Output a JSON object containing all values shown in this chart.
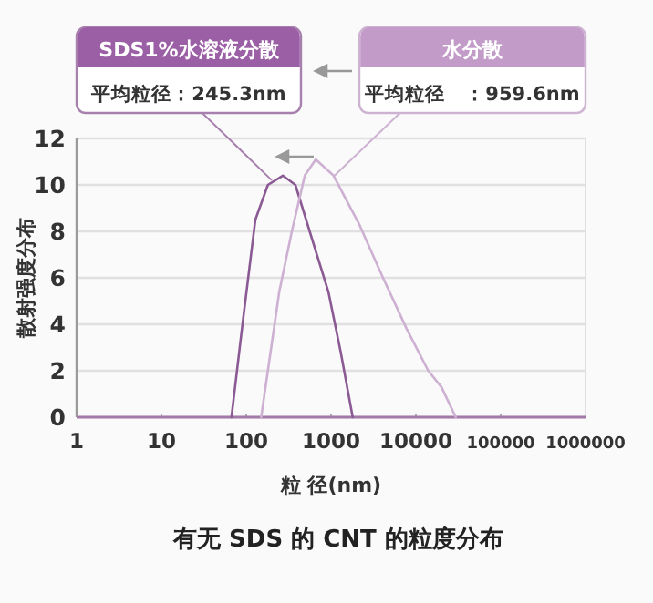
{
  "chart_data": {
    "type": "line",
    "title": "有无 SDS 的 CNT 的粒度分布",
    "xlabel": "粒 径(nm)",
    "ylabel": "散射强度分布",
    "log": "x",
    "xlim": [
      1,
      1000000
    ],
    "xticks": [
      1,
      10,
      100,
      1000,
      10000,
      100000,
      1000000
    ],
    "ylim": [
      0,
      12
    ],
    "yticks": [
      0,
      2,
      4,
      6,
      8,
      10,
      12
    ],
    "grid": "y",
    "marker": "none",
    "line_style": "solid",
    "annotations": [
      "SDS1%水溶液分散",
      {
        "text": "平均粒径：245.3nm",
        "x": 200,
        "y": 10.2
      },
      "水分散",
      {
        "text": "平均粒径　：959.6nm",
        "x": 1100,
        "y": 10.4
      }
    ],
    "series": [
      {
        "color": "#8b5a94",
        "x": [
          67,
          91,
          128,
          180,
          270,
          380,
          560,
          930,
          1300,
          1800
        ],
        "values": [
          0,
          4.1,
          8.5,
          10.0,
          10.4,
          10.0,
          8.0,
          5.4,
          2.8,
          0
        ]
      },
      {
        "color": "#cdb0d2",
        "x": [
          150,
          245,
          345,
          490,
          660,
          1070,
          2150,
          4100,
          7800,
          14000,
          20000,
          29500
        ],
        "values": [
          0,
          5.4,
          8.0,
          10.4,
          11.1,
          10.4,
          8.3,
          6.0,
          3.8,
          2.0,
          1.3,
          0
        ]
      }
    ]
  }
}
